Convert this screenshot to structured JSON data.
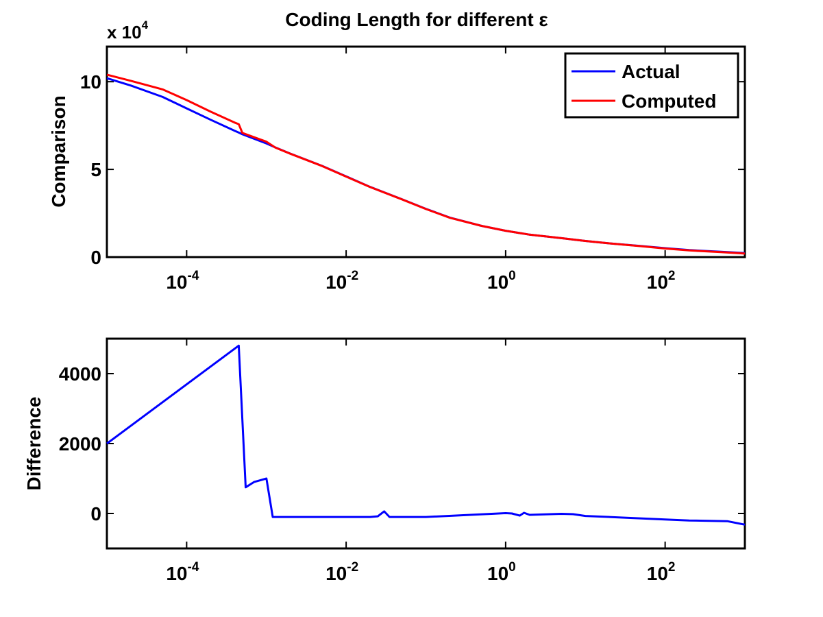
{
  "chart_data": [
    {
      "type": "line",
      "title": "Coding Length for different ε",
      "xlabel": "",
      "ylabel": "Comparison",
      "x_scale": "log",
      "xlim": [
        1e-05,
        1000
      ],
      "ylim": [
        0,
        120000
      ],
      "y_multiplier_label": {
        "base": "x 10",
        "exponent": "4"
      },
      "x_ticks": [
        {
          "value": 0.0001,
          "base": "10",
          "exp": "-4"
        },
        {
          "value": 0.01,
          "base": "10",
          "exp": "-2"
        },
        {
          "value": 1,
          "base": "10",
          "exp": "0"
        },
        {
          "value": 100,
          "base": "10",
          "exp": "2"
        }
      ],
      "y_ticks": [
        {
          "value": 0,
          "label": "0"
        },
        {
          "value": 50000,
          "label": "5"
        },
        {
          "value": 100000,
          "label": "10"
        }
      ],
      "grid": false,
      "legend": {
        "placement": "top-right",
        "entries": [
          "Actual",
          "Computed"
        ]
      },
      "series": [
        {
          "name": "Actual",
          "color": "#0000ff",
          "x": [
            1e-05,
            2e-05,
            5e-05,
            0.0001,
            0.0002,
            0.0004,
            0.00045,
            0.0005,
            0.001,
            0.0013,
            0.002,
            0.005,
            0.01,
            0.02,
            0.05,
            0.1,
            0.2,
            0.5,
            1,
            2,
            5,
            10,
            20,
            50,
            100,
            200,
            500,
            1000
          ],
          "y": [
            102000,
            97800,
            91300,
            84800,
            78300,
            72000,
            71000,
            70000,
            64800,
            62500,
            59000,
            52000,
            46000,
            40000,
            33000,
            27500,
            22500,
            17800,
            15000,
            12800,
            10800,
            9200,
            7800,
            6300,
            5100,
            4000,
            3000,
            2300
          ]
        },
        {
          "name": "Computed",
          "color": "#ff0000",
          "x": [
            1e-05,
            2e-05,
            5e-05,
            0.0001,
            0.0002,
            0.0004,
            0.00045,
            0.0005,
            0.001,
            0.0013,
            0.002,
            0.005,
            0.01,
            0.02,
            0.05,
            0.1,
            0.2,
            0.5,
            1,
            2,
            5,
            10,
            20,
            50,
            100,
            200,
            500,
            1000
          ],
          "y": [
            104000,
            100500,
            95600,
            89500,
            82900,
            76700,
            75800,
            70800,
            65800,
            62400,
            58900,
            51900,
            45900,
            39900,
            32900,
            27400,
            22400,
            17800,
            15000,
            12800,
            10800,
            9200,
            7800,
            6200,
            4900,
            3800,
            2800,
            2000
          ]
        }
      ]
    },
    {
      "type": "line",
      "title": "",
      "xlabel": "",
      "ylabel": "Difference",
      "x_scale": "log",
      "xlim": [
        1e-05,
        1000
      ],
      "ylim": [
        -1000,
        5000
      ],
      "x_ticks": [
        {
          "value": 0.0001,
          "base": "10",
          "exp": "-4"
        },
        {
          "value": 0.01,
          "base": "10",
          "exp": "-2"
        },
        {
          "value": 1,
          "base": "10",
          "exp": "0"
        },
        {
          "value": 100,
          "base": "10",
          "exp": "2"
        }
      ],
      "y_ticks": [
        {
          "value": 0,
          "label": "0"
        },
        {
          "value": 2000,
          "label": "2000"
        },
        {
          "value": 4000,
          "label": "4000"
        }
      ],
      "grid": false,
      "series": [
        {
          "color": "#0000ff",
          "x": [
            1e-05,
            0.00045,
            0.00055,
            0.0007,
            0.001,
            0.0012,
            0.0013,
            0.005,
            0.02,
            0.025,
            0.03,
            0.035,
            0.1,
            1,
            1.2,
            1.5,
            1.7,
            2,
            5,
            7,
            10,
            100,
            200,
            600,
            1000
          ],
          "y": [
            2000,
            4800,
            750,
            900,
            1000,
            -100,
            -100,
            -100,
            -100,
            -80,
            60,
            -100,
            -100,
            10,
            0,
            -60,
            20,
            -40,
            -10,
            -20,
            -70,
            -170,
            -200,
            -220,
            -320
          ]
        }
      ]
    }
  ]
}
